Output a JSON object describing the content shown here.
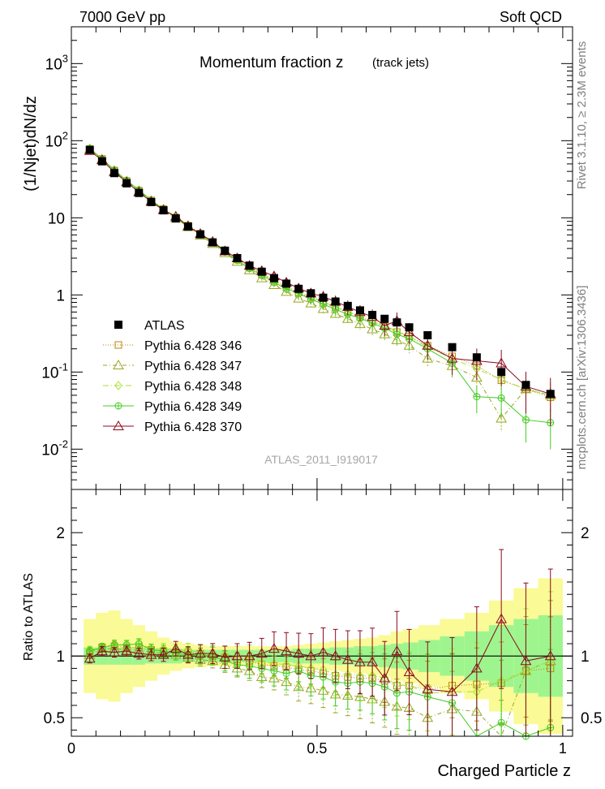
{
  "header": {
    "left": "7000 GeV pp",
    "right": "Soft QCD"
  },
  "title": "Momentum fraction z",
  "title_note": "(track jets)",
  "side_top": "Rivet 3.1.10, ≥ 2.3M events",
  "side_bottom": "mcplots.cern.ch [arXiv:1306.3436]",
  "analysis_id": "ATLAS_2011_I919017",
  "colors": {
    "data": "#000000",
    "s346": "#b8860b",
    "s347": "#9aa620",
    "s348": "#a4e22c",
    "s349": "#44cc22",
    "s370": "#8b0a1e",
    "band_inner": "#9ef58e",
    "band_outer": "#fafa96"
  },
  "chart_data": [
    {
      "type": "scatter",
      "panel": "main",
      "ylabel": "(1/Njet)dN/dz",
      "yscale": "log",
      "ylim": [
        0.003,
        3000
      ],
      "xlim": [
        0,
        1.02
      ],
      "y_ticks": [
        "10^-2",
        "10^-1",
        "1",
        "10",
        "10^2",
        "10^3"
      ],
      "legend": "bottom-left",
      "x": [
        0.0375,
        0.0625,
        0.0875,
        0.1125,
        0.1375,
        0.1625,
        0.1875,
        0.2125,
        0.2375,
        0.2625,
        0.2875,
        0.3125,
        0.3375,
        0.3625,
        0.3875,
        0.4125,
        0.4375,
        0.4625,
        0.4875,
        0.5125,
        0.5375,
        0.5625,
        0.5875,
        0.6125,
        0.6375,
        0.6625,
        0.6875,
        0.725,
        0.775,
        0.825,
        0.875,
        0.925,
        0.975
      ],
      "series": [
        {
          "name": "ATLAS",
          "key": "data",
          "marker": "square-filled",
          "values": [
            76,
            54,
            38,
            28,
            21,
            16,
            12.5,
            9.8,
            7.7,
            6.1,
            4.8,
            3.75,
            3.0,
            2.4,
            2.0,
            1.65,
            1.4,
            1.2,
            1.05,
            0.92,
            0.82,
            0.72,
            0.63,
            0.55,
            0.49,
            0.44,
            0.38,
            0.3,
            0.21,
            0.155,
            0.1,
            0.068,
            0.052
          ]
        },
        {
          "name": "Pythia 6.428 346",
          "key": "s346",
          "marker": "square-open",
          "dash": "1,2",
          "values": [
            78,
            58,
            41,
            30,
            22.5,
            16.8,
            13,
            10.1,
            7.9,
            6.2,
            4.8,
            3.7,
            2.9,
            2.3,
            1.85,
            1.52,
            1.27,
            1.07,
            0.92,
            0.79,
            0.69,
            0.6,
            0.52,
            0.45,
            0.39,
            0.33,
            0.29,
            0.22,
            0.16,
            0.12,
            0.078,
            0.06,
            0.047
          ]
        },
        {
          "name": "Pythia 6.428 347",
          "key": "s347",
          "marker": "triangle-open",
          "dash": "5,3,1,3",
          "values": [
            77,
            57,
            40,
            29.5,
            22,
            16.5,
            12.7,
            9.9,
            7.6,
            5.9,
            4.6,
            3.5,
            2.7,
            2.1,
            1.65,
            1.35,
            1.1,
            0.9,
            0.78,
            0.66,
            0.57,
            0.49,
            0.42,
            0.36,
            0.31,
            0.26,
            0.22,
            0.15,
            0.12,
            0.085,
            0.025,
            0.06,
            0.05
          ]
        },
        {
          "name": "Pythia 6.428 348",
          "key": "s348",
          "marker": "diamond-open",
          "dash": "7,3,1,3",
          "values": [
            80,
            58,
            42,
            30.5,
            23,
            17,
            13.2,
            10.3,
            8.1,
            6.3,
            4.9,
            3.8,
            3.0,
            2.4,
            1.9,
            1.55,
            1.3,
            1.1,
            0.95,
            0.82,
            0.7,
            0.61,
            0.53,
            0.46,
            0.4,
            0.34,
            0.29,
            0.21,
            0.15,
            0.11,
            0.08,
            0.06,
            0.05
          ]
        },
        {
          "name": "Pythia 6.428 349",
          "key": "s349",
          "marker": "circle-open",
          "dash": "",
          "values": [
            79,
            58,
            41.5,
            30.5,
            23,
            16.8,
            13,
            10,
            7.8,
            6.1,
            4.8,
            3.6,
            2.8,
            2.2,
            1.8,
            1.45,
            1.2,
            1.05,
            0.88,
            0.76,
            0.65,
            0.56,
            0.5,
            0.43,
            0.37,
            0.31,
            0.27,
            0.2,
            0.13,
            0.048,
            0.046,
            0.024,
            0.022
          ]
        },
        {
          "name": "Pythia 6.428 370",
          "key": "s370",
          "marker": "triangle-open",
          "dash": "",
          "values": [
            74,
            56,
            39,
            29,
            21.5,
            16.2,
            12.6,
            10.4,
            7.8,
            6.2,
            4.9,
            3.7,
            3.0,
            2.4,
            2.05,
            1.75,
            1.45,
            1.22,
            1.05,
            0.95,
            0.82,
            0.7,
            0.6,
            0.52,
            0.4,
            0.46,
            0.33,
            0.22,
            0.15,
            0.14,
            0.13,
            0.065,
            0.052
          ]
        }
      ]
    },
    {
      "type": "scatter",
      "panel": "ratio",
      "xlabel": "Charged Particle z",
      "ylabel": "Ratio to ATLAS",
      "ylim": [
        0.35,
        2.35
      ],
      "xlim": [
        0,
        1.02
      ],
      "y_ticks": [
        "0.5",
        "1",
        "2"
      ],
      "x_ticks": [
        "0",
        "0.5",
        "1"
      ],
      "band_inner": [
        0.07,
        0.07,
        0.07,
        0.07,
        0.07,
        0.06,
        0.06,
        0.06,
        0.05,
        0.05,
        0.05,
        0.05,
        0.05,
        0.05,
        0.05,
        0.05,
        0.05,
        0.06,
        0.06,
        0.06,
        0.07,
        0.07,
        0.08,
        0.08,
        0.09,
        0.1,
        0.11,
        0.13,
        0.16,
        0.2,
        0.25,
        0.3,
        0.33
      ],
      "band_outer": [
        0.3,
        0.35,
        0.37,
        0.3,
        0.25,
        0.2,
        0.15,
        0.12,
        0.1,
        0.09,
        0.08,
        0.08,
        0.08,
        0.08,
        0.08,
        0.08,
        0.08,
        0.09,
        0.1,
        0.11,
        0.12,
        0.13,
        0.14,
        0.15,
        0.17,
        0.2,
        0.22,
        0.25,
        0.3,
        0.35,
        0.45,
        0.55,
        0.63
      ],
      "series": [
        {
          "name": "Pythia 6.428 346",
          "key": "s346",
          "values": [
            1.03,
            1.07,
            1.08,
            1.07,
            1.07,
            1.05,
            1.04,
            1.03,
            1.03,
            1.02,
            1.0,
            0.99,
            0.97,
            0.96,
            0.93,
            0.92,
            0.91,
            0.89,
            0.88,
            0.86,
            0.84,
            0.83,
            0.82,
            0.82,
            0.8,
            0.76,
            0.76,
            0.73,
            0.76,
            0.77,
            0.78,
            0.88,
            0.9
          ]
        },
        {
          "name": "Pythia 6.428 347",
          "key": "s347",
          "values": [
            1.01,
            1.06,
            1.06,
            1.05,
            1.05,
            1.03,
            1.02,
            1.01,
            0.99,
            0.97,
            0.96,
            0.93,
            0.9,
            0.88,
            0.83,
            0.82,
            0.79,
            0.75,
            0.74,
            0.72,
            0.69,
            0.68,
            0.67,
            0.65,
            0.63,
            0.59,
            0.58,
            0.5,
            0.57,
            0.55,
            0.25,
            0.88,
            0.96
          ]
        },
        {
          "name": "Pythia 6.428 348",
          "key": "s348",
          "values": [
            1.05,
            1.07,
            1.1,
            1.09,
            1.1,
            1.06,
            1.06,
            1.05,
            1.05,
            1.03,
            1.02,
            1.01,
            1.0,
            1.0,
            0.95,
            0.94,
            0.93,
            0.92,
            0.9,
            0.89,
            0.85,
            0.85,
            0.84,
            0.84,
            0.82,
            0.77,
            0.76,
            0.7,
            0.71,
            0.71,
            0.8,
            0.88,
            0.96
          ]
        },
        {
          "name": "Pythia 6.428 349",
          "key": "s349",
          "values": [
            1.04,
            1.07,
            1.09,
            1.09,
            1.1,
            1.05,
            1.04,
            1.02,
            1.01,
            1.0,
            1.0,
            0.96,
            0.93,
            0.92,
            0.9,
            0.88,
            0.86,
            0.88,
            0.84,
            0.83,
            0.79,
            0.78,
            0.79,
            0.78,
            0.75,
            0.7,
            0.71,
            0.67,
            0.62,
            0.31,
            0.46,
            0.35,
            0.42
          ]
        },
        {
          "name": "Pythia 6.428 370",
          "key": "s370",
          "values": [
            0.98,
            1.04,
            1.03,
            1.04,
            1.02,
            1.01,
            1.01,
            1.06,
            1.01,
            1.02,
            1.02,
            0.99,
            1.0,
            1.0,
            1.02,
            1.06,
            1.04,
            1.02,
            1.0,
            1.03,
            1.0,
            0.97,
            0.95,
            0.95,
            0.82,
            1.04,
            0.87,
            0.73,
            0.71,
            0.9,
            1.3,
            0.96,
            1.0
          ]
        }
      ]
    }
  ]
}
